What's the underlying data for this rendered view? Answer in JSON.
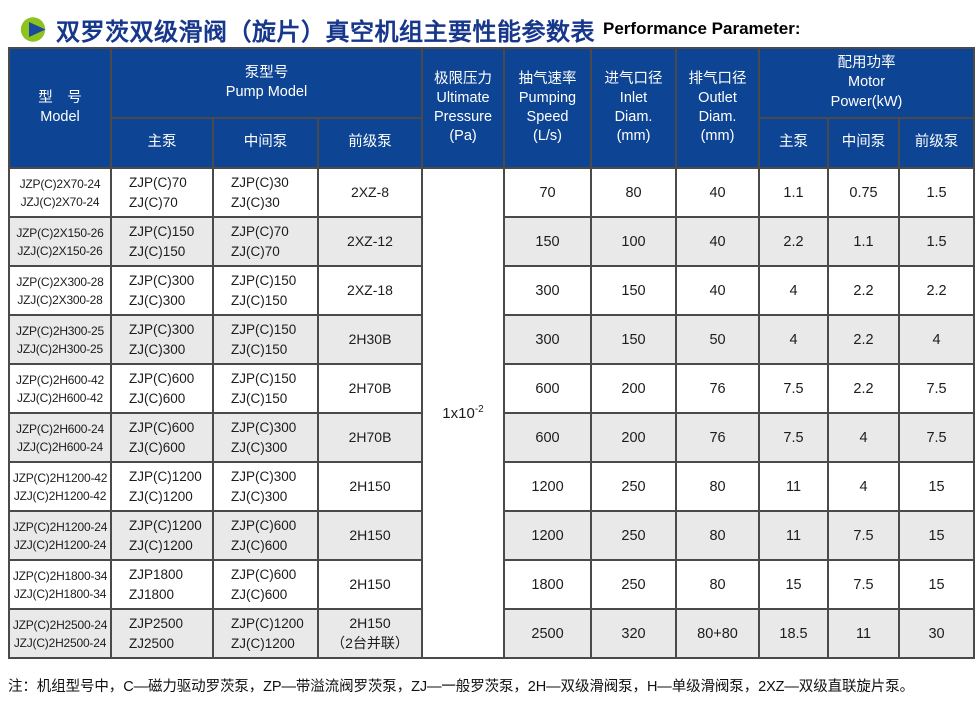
{
  "page": {
    "title_cn": "双罗茨双级滑阀（旋片）真空机组主要性能参数表",
    "title_en": "Performance Parameter:",
    "footnote": "注：机组型号中，C—磁力驱动罗茨泵，ZP—带溢流阀罗茨泵，ZJ—一般罗茨泵，2H—双级滑阀泵，H—单级滑阀泵，2XZ—双级直联旋片泵。"
  },
  "colors": {
    "header_blue": "#0d4494",
    "title_blue": "#16378c",
    "icon_green": "#8dc21f",
    "icon_triangle_blue": "#1b4a9c",
    "row_alt_gray": "#e9e9e9"
  },
  "table": {
    "header": {
      "model_cn": "型　号",
      "model_en": "Model",
      "pump_model_cn": "泵型号",
      "pump_model_en": "Pump Model",
      "main_pump": "主泵",
      "middle_pump": "中间泵",
      "fore_pump": "前级泵",
      "ultimate_pressure_cn": "极限压力",
      "ultimate_pressure_en_1": "Ultimate",
      "ultimate_pressure_en_2": "Pressure",
      "ultimate_pressure_unit": "(Pa)",
      "pumping_speed_cn": "抽气速率",
      "pumping_speed_en_1": "Pumping",
      "pumping_speed_en_2": "Speed",
      "pumping_speed_unit": "(L/s)",
      "inlet_diam_cn": "进气口径",
      "inlet_diam_en_1": "Inlet",
      "inlet_diam_en_2": "Diam.",
      "inlet_diam_unit": "(mm)",
      "outlet_diam_cn": "排气口径",
      "outlet_diam_en_1": "Outlet",
      "outlet_diam_en_2": "Diam.",
      "outlet_diam_unit": "(mm)",
      "motor_power_cn": "配用功率",
      "motor_power_en_1": "Motor",
      "motor_power_en_2": "Power(kW)",
      "power_main_pump": "主泵",
      "power_middle_pump": "中间泵",
      "power_fore_pump": "前级泵"
    },
    "ultimate_pressure_value": {
      "base": "1x10",
      "exp": "-2"
    },
    "rows": [
      {
        "model": [
          "JZP(C)2X70-24",
          "JZJ(C)2X70-24"
        ],
        "main_pump": [
          "ZJP(C)70",
          "ZJ(C)70"
        ],
        "middle_pump": [
          "ZJP(C)30",
          "ZJ(C)30"
        ],
        "fore_pump": [
          "2XZ-8"
        ],
        "speed": "70",
        "inlet": "80",
        "outlet": "40",
        "power_main": "1.1",
        "power_middle": "0.75",
        "power_fore": "1.5"
      },
      {
        "model": [
          "JZP(C)2X150-26",
          "JZJ(C)2X150-26"
        ],
        "main_pump": [
          "ZJP(C)150",
          "ZJ(C)150"
        ],
        "middle_pump": [
          "ZJP(C)70",
          "ZJ(C)70"
        ],
        "fore_pump": [
          "2XZ-12"
        ],
        "speed": "150",
        "inlet": "100",
        "outlet": "40",
        "power_main": "2.2",
        "power_middle": "1.1",
        "power_fore": "1.5"
      },
      {
        "model": [
          "JZP(C)2X300-28",
          "JZJ(C)2X300-28"
        ],
        "main_pump": [
          "ZJP(C)300",
          "ZJ(C)300"
        ],
        "middle_pump": [
          "ZJP(C)150",
          "ZJ(C)150"
        ],
        "fore_pump": [
          "2XZ-18"
        ],
        "speed": "300",
        "inlet": "150",
        "outlet": "40",
        "power_main": "4",
        "power_middle": "2.2",
        "power_fore": "2.2"
      },
      {
        "model": [
          "JZP(C)2H300-25",
          "JZJ(C)2H300-25"
        ],
        "main_pump": [
          "ZJP(C)300",
          "ZJ(C)300"
        ],
        "middle_pump": [
          "ZJP(C)150",
          "ZJ(C)150"
        ],
        "fore_pump": [
          "2H30B"
        ],
        "speed": "300",
        "inlet": "150",
        "outlet": "50",
        "power_main": "4",
        "power_middle": "2.2",
        "power_fore": "4"
      },
      {
        "model": [
          "JZP(C)2H600-42",
          "JZJ(C)2H600-42"
        ],
        "main_pump": [
          "ZJP(C)600",
          "ZJ(C)600"
        ],
        "middle_pump": [
          "ZJP(C)150",
          "ZJ(C)150"
        ],
        "fore_pump": [
          "2H70B"
        ],
        "speed": "600",
        "inlet": "200",
        "outlet": "76",
        "power_main": "7.5",
        "power_middle": "2.2",
        "power_fore": "7.5"
      },
      {
        "model": [
          "JZP(C)2H600-24",
          "JZJ(C)2H600-24"
        ],
        "main_pump": [
          "ZJP(C)600",
          "ZJ(C)600"
        ],
        "middle_pump": [
          "ZJP(C)300",
          "ZJ(C)300"
        ],
        "fore_pump": [
          "2H70B"
        ],
        "speed": "600",
        "inlet": "200",
        "outlet": "76",
        "power_main": "7.5",
        "power_middle": "4",
        "power_fore": "7.5"
      },
      {
        "model": [
          "JZP(C)2H1200-42",
          "JZJ(C)2H1200-42"
        ],
        "main_pump": [
          "ZJP(C)1200",
          "ZJ(C)1200"
        ],
        "middle_pump": [
          "ZJP(C)300",
          "ZJ(C)300"
        ],
        "fore_pump": [
          "2H150"
        ],
        "speed": "1200",
        "inlet": "250",
        "outlet": "80",
        "power_main": "11",
        "power_middle": "4",
        "power_fore": "15"
      },
      {
        "model": [
          "JZP(C)2H1200-24",
          "JZJ(C)2H1200-24"
        ],
        "main_pump": [
          "ZJP(C)1200",
          "ZJ(C)1200"
        ],
        "middle_pump": [
          "ZJP(C)600",
          "ZJ(C)600"
        ],
        "fore_pump": [
          "2H150"
        ],
        "speed": "1200",
        "inlet": "250",
        "outlet": "80",
        "power_main": "11",
        "power_middle": "7.5",
        "power_fore": "15"
      },
      {
        "model": [
          "JZP(C)2H1800-34",
          "JZJ(C)2H1800-34"
        ],
        "main_pump": [
          "ZJP1800",
          "ZJ1800"
        ],
        "middle_pump": [
          "ZJP(C)600",
          "ZJ(C)600"
        ],
        "fore_pump": [
          "2H150"
        ],
        "speed": "1800",
        "inlet": "250",
        "outlet": "80",
        "power_main": "15",
        "power_middle": "7.5",
        "power_fore": "15"
      },
      {
        "model": [
          "JZP(C)2H2500-24",
          "JZJ(C)2H2500-24"
        ],
        "main_pump": [
          "ZJP2500",
          "ZJ2500"
        ],
        "middle_pump": [
          "ZJP(C)1200",
          "ZJ(C)1200"
        ],
        "fore_pump": [
          "2H150",
          "（2台并联）"
        ],
        "speed": "2500",
        "inlet": "320",
        "outlet": "80+80",
        "power_main": "18.5",
        "power_middle": "11",
        "power_fore": "30"
      }
    ]
  }
}
